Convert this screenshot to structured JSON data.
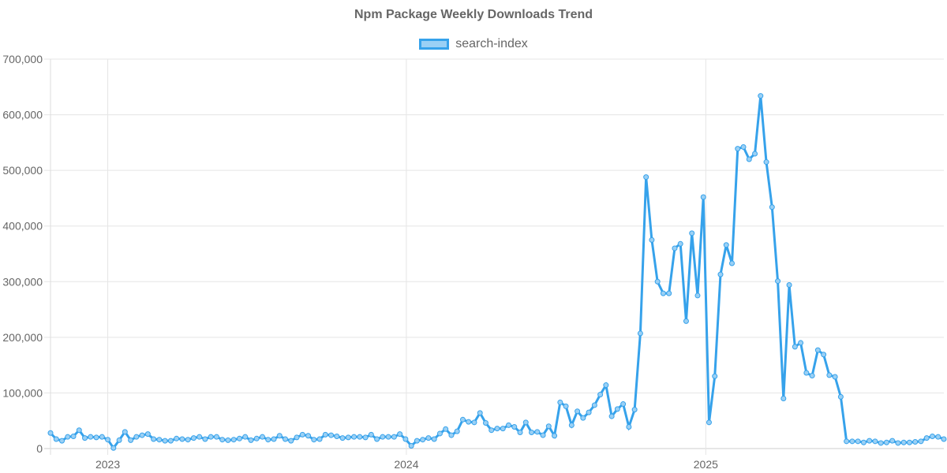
{
  "chart_data": {
    "type": "line",
    "title": "Npm Package Weekly Downloads Trend",
    "xlabel": "",
    "ylabel": "",
    "ylim": [
      0,
      700000
    ],
    "y_ticks": [
      0,
      100000,
      200000,
      300000,
      400000,
      500000,
      600000,
      700000
    ],
    "y_tick_labels": [
      "0",
      "100,000",
      "200,000",
      "300,000",
      "400,000",
      "500,000",
      "600,000",
      "700,000"
    ],
    "x_ticks": [
      "2023",
      "2024",
      "2025"
    ],
    "x_range": [
      "2022-10-23",
      "2025-09-21"
    ],
    "x_tick_dates": [
      "2023-01-01",
      "2024-01-01",
      "2025-01-01"
    ],
    "grid": true,
    "legend_position": "top",
    "series": [
      {
        "name": "search-index",
        "color": "#36a2eb",
        "fill_color": "#9ad0f5",
        "points": [
          {
            "x": "2022-10-23",
            "y": 28000
          },
          {
            "x": "2022-10-30",
            "y": 17000
          },
          {
            "x": "2022-11-06",
            "y": 14000
          },
          {
            "x": "2022-11-13",
            "y": 21000
          },
          {
            "x": "2022-11-20",
            "y": 22000
          },
          {
            "x": "2022-11-27",
            "y": 33000
          },
          {
            "x": "2022-12-04",
            "y": 19000
          },
          {
            "x": "2022-12-11",
            "y": 21000
          },
          {
            "x": "2022-12-18",
            "y": 20000
          },
          {
            "x": "2022-12-25",
            "y": 21000
          },
          {
            "x": "2023-01-01",
            "y": 16000
          },
          {
            "x": "2023-01-08",
            "y": 1000
          },
          {
            "x": "2023-01-15",
            "y": 15000
          },
          {
            "x": "2023-01-22",
            "y": 30000
          },
          {
            "x": "2023-01-29",
            "y": 15000
          },
          {
            "x": "2023-02-05",
            "y": 21000
          },
          {
            "x": "2023-02-12",
            "y": 24000
          },
          {
            "x": "2023-02-19",
            "y": 26000
          },
          {
            "x": "2023-02-26",
            "y": 17000
          },
          {
            "x": "2023-03-05",
            "y": 16000
          },
          {
            "x": "2023-03-12",
            "y": 14000
          },
          {
            "x": "2023-03-19",
            "y": 14000
          },
          {
            "x": "2023-03-26",
            "y": 18000
          },
          {
            "x": "2023-04-02",
            "y": 17000
          },
          {
            "x": "2023-04-09",
            "y": 16000
          },
          {
            "x": "2023-04-16",
            "y": 19000
          },
          {
            "x": "2023-04-23",
            "y": 21000
          },
          {
            "x": "2023-04-30",
            "y": 17000
          },
          {
            "x": "2023-05-07",
            "y": 21000
          },
          {
            "x": "2023-05-14",
            "y": 21000
          },
          {
            "x": "2023-05-21",
            "y": 16000
          },
          {
            "x": "2023-05-28",
            "y": 15000
          },
          {
            "x": "2023-06-04",
            "y": 16000
          },
          {
            "x": "2023-06-11",
            "y": 18000
          },
          {
            "x": "2023-06-18",
            "y": 21000
          },
          {
            "x": "2023-06-25",
            "y": 15000
          },
          {
            "x": "2023-07-02",
            "y": 18000
          },
          {
            "x": "2023-07-09",
            "y": 21000
          },
          {
            "x": "2023-07-16",
            "y": 16000
          },
          {
            "x": "2023-07-23",
            "y": 17000
          },
          {
            "x": "2023-07-30",
            "y": 23000
          },
          {
            "x": "2023-08-06",
            "y": 17000
          },
          {
            "x": "2023-08-13",
            "y": 14000
          },
          {
            "x": "2023-08-20",
            "y": 20000
          },
          {
            "x": "2023-08-27",
            "y": 25000
          },
          {
            "x": "2023-09-03",
            "y": 23000
          },
          {
            "x": "2023-09-10",
            "y": 16000
          },
          {
            "x": "2023-09-17",
            "y": 17000
          },
          {
            "x": "2023-09-24",
            "y": 25000
          },
          {
            "x": "2023-10-01",
            "y": 24000
          },
          {
            "x": "2023-10-08",
            "y": 22000
          },
          {
            "x": "2023-10-15",
            "y": 19000
          },
          {
            "x": "2023-10-22",
            "y": 20000
          },
          {
            "x": "2023-10-29",
            "y": 21000
          },
          {
            "x": "2023-11-05",
            "y": 21000
          },
          {
            "x": "2023-11-12",
            "y": 20000
          },
          {
            "x": "2023-11-19",
            "y": 25000
          },
          {
            "x": "2023-11-26",
            "y": 17000
          },
          {
            "x": "2023-12-03",
            "y": 21000
          },
          {
            "x": "2023-12-10",
            "y": 21000
          },
          {
            "x": "2023-12-17",
            "y": 21000
          },
          {
            "x": "2023-12-24",
            "y": 26000
          },
          {
            "x": "2023-12-31",
            "y": 17000
          },
          {
            "x": "2024-01-07",
            "y": 5000
          },
          {
            "x": "2024-01-14",
            "y": 14000
          },
          {
            "x": "2024-01-21",
            "y": 16000
          },
          {
            "x": "2024-01-28",
            "y": 19000
          },
          {
            "x": "2024-02-04",
            "y": 17000
          },
          {
            "x": "2024-02-11",
            "y": 27000
          },
          {
            "x": "2024-02-18",
            "y": 35000
          },
          {
            "x": "2024-02-25",
            "y": 24000
          },
          {
            "x": "2024-03-03",
            "y": 31000
          },
          {
            "x": "2024-03-10",
            "y": 52000
          },
          {
            "x": "2024-03-17",
            "y": 48000
          },
          {
            "x": "2024-03-24",
            "y": 47000
          },
          {
            "x": "2024-03-31",
            "y": 64000
          },
          {
            "x": "2024-04-07",
            "y": 46000
          },
          {
            "x": "2024-04-14",
            "y": 33000
          },
          {
            "x": "2024-04-21",
            "y": 36000
          },
          {
            "x": "2024-04-28",
            "y": 36000
          },
          {
            "x": "2024-05-05",
            "y": 42000
          },
          {
            "x": "2024-05-12",
            "y": 39000
          },
          {
            "x": "2024-05-19",
            "y": 29000
          },
          {
            "x": "2024-05-26",
            "y": 47000
          },
          {
            "x": "2024-06-02",
            "y": 29000
          },
          {
            "x": "2024-06-09",
            "y": 30000
          },
          {
            "x": "2024-06-16",
            "y": 24000
          },
          {
            "x": "2024-06-23",
            "y": 40000
          },
          {
            "x": "2024-06-30",
            "y": 23000
          },
          {
            "x": "2024-07-07",
            "y": 83000
          },
          {
            "x": "2024-07-14",
            "y": 76000
          },
          {
            "x": "2024-07-21",
            "y": 42000
          },
          {
            "x": "2024-07-28",
            "y": 67000
          },
          {
            "x": "2024-08-04",
            "y": 55000
          },
          {
            "x": "2024-08-11",
            "y": 65000
          },
          {
            "x": "2024-08-18",
            "y": 78000
          },
          {
            "x": "2024-08-25",
            "y": 97000
          },
          {
            "x": "2024-09-01",
            "y": 114000
          },
          {
            "x": "2024-09-08",
            "y": 58000
          },
          {
            "x": "2024-09-15",
            "y": 71000
          },
          {
            "x": "2024-09-22",
            "y": 80000
          },
          {
            "x": "2024-09-29",
            "y": 39000
          },
          {
            "x": "2024-10-06",
            "y": 70000
          },
          {
            "x": "2024-10-13",
            "y": 207000
          },
          {
            "x": "2024-10-20",
            "y": 488000
          },
          {
            "x": "2024-10-27",
            "y": 375000
          },
          {
            "x": "2024-11-03",
            "y": 300000
          },
          {
            "x": "2024-11-10",
            "y": 279000
          },
          {
            "x": "2024-11-17",
            "y": 279000
          },
          {
            "x": "2024-11-24",
            "y": 360000
          },
          {
            "x": "2024-12-01",
            "y": 368000
          },
          {
            "x": "2024-12-08",
            "y": 229000
          },
          {
            "x": "2024-12-15",
            "y": 387000
          },
          {
            "x": "2024-12-22",
            "y": 275000
          },
          {
            "x": "2024-12-29",
            "y": 452000
          },
          {
            "x": "2025-01-05",
            "y": 47000
          },
          {
            "x": "2025-01-12",
            "y": 130000
          },
          {
            "x": "2025-01-19",
            "y": 313000
          },
          {
            "x": "2025-01-26",
            "y": 366000
          },
          {
            "x": "2025-02-02",
            "y": 333000
          },
          {
            "x": "2025-02-09",
            "y": 539000
          },
          {
            "x": "2025-02-16",
            "y": 542000
          },
          {
            "x": "2025-02-23",
            "y": 520000
          },
          {
            "x": "2025-03-02",
            "y": 530000
          },
          {
            "x": "2025-03-09",
            "y": 634000
          },
          {
            "x": "2025-03-16",
            "y": 515000
          },
          {
            "x": "2025-03-23",
            "y": 434000
          },
          {
            "x": "2025-03-30",
            "y": 301000
          },
          {
            "x": "2025-04-06",
            "y": 90000
          },
          {
            "x": "2025-04-13",
            "y": 294000
          },
          {
            "x": "2025-04-20",
            "y": 183000
          },
          {
            "x": "2025-04-27",
            "y": 190000
          },
          {
            "x": "2025-05-04",
            "y": 136000
          },
          {
            "x": "2025-05-11",
            "y": 131000
          },
          {
            "x": "2025-05-18",
            "y": 177000
          },
          {
            "x": "2025-05-25",
            "y": 169000
          },
          {
            "x": "2025-06-01",
            "y": 132000
          },
          {
            "x": "2025-06-08",
            "y": 129000
          },
          {
            "x": "2025-06-15",
            "y": 93000
          },
          {
            "x": "2025-06-22",
            "y": 13000
          },
          {
            "x": "2025-06-29",
            "y": 13000
          },
          {
            "x": "2025-07-06",
            "y": 13000
          },
          {
            "x": "2025-07-13",
            "y": 11000
          },
          {
            "x": "2025-07-20",
            "y": 14000
          },
          {
            "x": "2025-07-27",
            "y": 13000
          },
          {
            "x": "2025-08-03",
            "y": 10000
          },
          {
            "x": "2025-08-10",
            "y": 11000
          },
          {
            "x": "2025-08-17",
            "y": 14000
          },
          {
            "x": "2025-08-24",
            "y": 10000
          },
          {
            "x": "2025-08-31",
            "y": 11000
          },
          {
            "x": "2025-09-07",
            "y": 11000
          },
          {
            "x": "2025-09-14",
            "y": 12000
          },
          {
            "x": "2025-09-21",
            "y": 13000
          },
          {
            "x": "2025-09-28",
            "y": 19000
          },
          {
            "x": "2025-10-05",
            "y": 22000
          },
          {
            "x": "2025-10-12",
            "y": 21000
          },
          {
            "x": "2025-10-19",
            "y": 17000
          }
        ]
      }
    ]
  }
}
